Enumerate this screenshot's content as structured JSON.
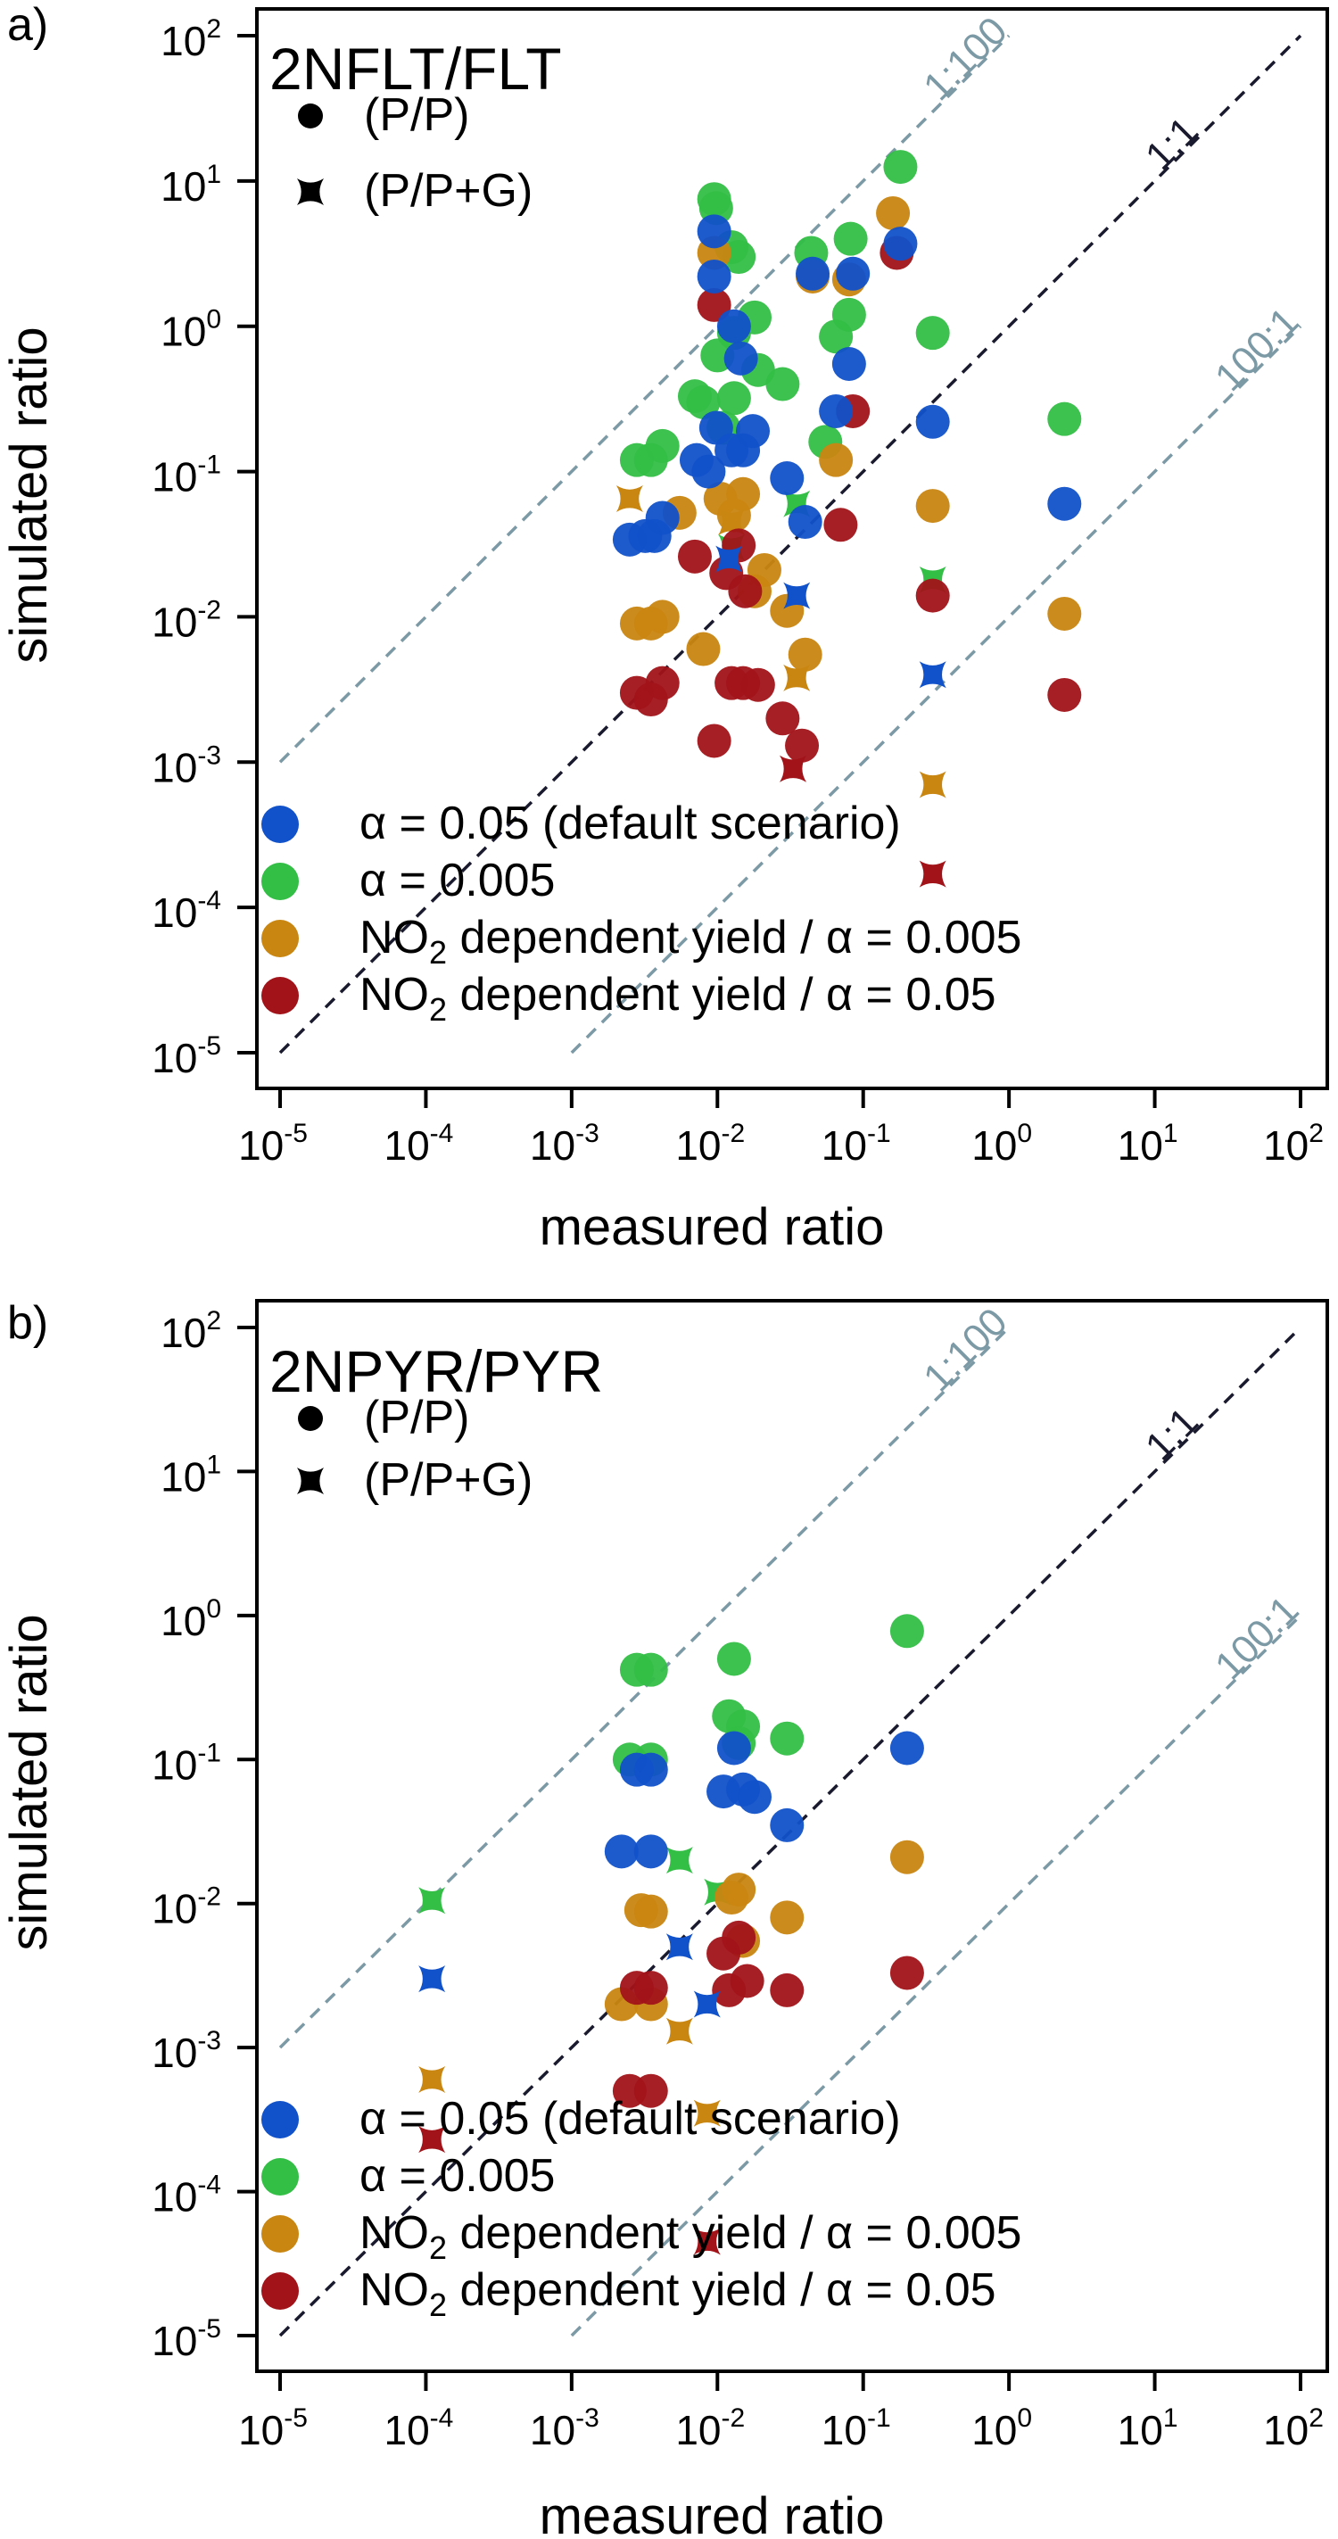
{
  "colors": {
    "blue": "#1151c9",
    "green": "#33be46",
    "orange": "#c98611",
    "red": "#a11319",
    "reference": "#7c99a6",
    "one_to_one": "#1a1a2e"
  },
  "chart_data": [
    {
      "type": "scatter",
      "panel": "a)",
      "title": "2NFLT/FLT",
      "xlabel": "measured ratio",
      "ylabel": "simulated ratio",
      "xscale": "log",
      "yscale": "log",
      "xlim": [
        1e-05,
        100
      ],
      "ylim": [
        1e-05,
        100
      ],
      "x_ticks": [
        {
          "base": "10",
          "exp": "-5"
        },
        {
          "base": "10",
          "exp": "-4"
        },
        {
          "base": "10",
          "exp": "-3"
        },
        {
          "base": "10",
          "exp": "-2"
        },
        {
          "base": "10",
          "exp": "-1"
        },
        {
          "base": "10",
          "exp": "0"
        },
        {
          "base": "10",
          "exp": "1"
        },
        {
          "base": "10",
          "exp": "2"
        }
      ],
      "y_ticks": [
        {
          "base": "10",
          "exp": "-5"
        },
        {
          "base": "10",
          "exp": "-4"
        },
        {
          "base": "10",
          "exp": "-3"
        },
        {
          "base": "10",
          "exp": "-2"
        },
        {
          "base": "10",
          "exp": "-1"
        },
        {
          "base": "10",
          "exp": "0"
        },
        {
          "base": "10",
          "exp": "1"
        },
        {
          "base": "10",
          "exp": "2"
        }
      ],
      "marker_legend": [
        {
          "marker": "circle",
          "label": "(P/P)"
        },
        {
          "marker": "star",
          "label": "(P/P+G)"
        }
      ],
      "reference_lines": [
        {
          "label": "1:100",
          "factor": 100
        },
        {
          "label": "1:1",
          "factor": 1
        },
        {
          "label": "100:1",
          "factor": 0.01
        }
      ],
      "legend": [
        {
          "color_key": "blue",
          "text": "α = 0.05 (default scenario)",
          "sub": ""
        },
        {
          "color_key": "green",
          "text": "α = 0.005",
          "sub": ""
        },
        {
          "color_key": "orange",
          "text": "NO",
          "sub": "2",
          "rest": " dependent   yield / α = 0.005"
        },
        {
          "color_key": "red",
          "text": "NO",
          "sub": "2",
          "rest": " dependent   yield / α = 0.05"
        }
      ],
      "series": [
        {
          "name": "α = 0.005",
          "color_key": "green",
          "circles": [
            [
              0.0028,
              0.12
            ],
            [
              0.0035,
              0.12
            ],
            [
              0.0042,
              0.15
            ],
            [
              0.007,
              0.33
            ],
            [
              0.008,
              0.3
            ],
            [
              0.0095,
              7.5
            ],
            [
              0.0098,
              6.5
            ],
            [
              0.01,
              0.63
            ],
            [
              0.011,
              0.2
            ],
            [
              0.0125,
              3.5
            ],
            [
              0.013,
              0.32
            ],
            [
              0.013,
              0.9
            ],
            [
              0.014,
              3.0
            ],
            [
              0.018,
              1.15
            ],
            [
              0.019,
              0.5
            ],
            [
              0.028,
              0.4
            ],
            [
              0.044,
              3.2
            ],
            [
              0.055,
              0.16
            ],
            [
              0.065,
              0.85
            ],
            [
              0.08,
              1.2
            ],
            [
              0.082,
              4.0
            ],
            [
              0.3,
              0.9
            ],
            [
              0.18,
              12.5
            ],
            [
              2.4,
              0.23
            ]
          ],
          "stars": [
            [
              0.035,
              0.06
            ],
            [
              0.3,
              0.018
            ],
            [
              0.0125,
              0.03
            ]
          ]
        },
        {
          "name": "NO2 dependent yield / α = 0.005",
          "color_key": "orange",
          "circles": [
            [
              0.0028,
              0.009
            ],
            [
              0.0035,
              0.009
            ],
            [
              0.0042,
              0.01
            ],
            [
              0.0055,
              0.052
            ],
            [
              0.008,
              0.006
            ],
            [
              0.0095,
              3.2
            ],
            [
              0.0105,
              0.065
            ],
            [
              0.013,
              0.05
            ],
            [
              0.015,
              0.07
            ],
            [
              0.018,
              0.015
            ],
            [
              0.021,
              0.021
            ],
            [
              0.03,
              0.011
            ],
            [
              0.04,
              0.0055
            ],
            [
              0.045,
              2.2
            ],
            [
              0.065,
              0.12
            ],
            [
              0.08,
              2.1
            ],
            [
              0.16,
              6.0
            ],
            [
              0.3,
              0.058
            ],
            [
              2.4,
              0.0105
            ]
          ],
          "stars": [
            [
              0.0025,
              0.065
            ],
            [
              0.035,
              0.0038
            ],
            [
              0.3,
              0.0007
            ],
            [
              0.0125,
              0.045
            ]
          ]
        },
        {
          "name": "NO2 dependent yield / α = 0.05",
          "color_key": "red",
          "circles": [
            [
              0.0028,
              0.003
            ],
            [
              0.0035,
              0.0027
            ],
            [
              0.0042,
              0.0035
            ],
            [
              0.007,
              0.026
            ],
            [
              0.0095,
              1.4
            ],
            [
              0.0095,
              0.0014
            ],
            [
              0.0115,
              0.02
            ],
            [
              0.0125,
              0.0035
            ],
            [
              0.014,
              0.031
            ],
            [
              0.015,
              0.0035
            ],
            [
              0.0155,
              0.015
            ],
            [
              0.019,
              0.0034
            ],
            [
              0.028,
              0.002
            ],
            [
              0.038,
              0.0013
            ],
            [
              0.07,
              0.043
            ],
            [
              0.085,
              0.26
            ],
            [
              0.17,
              3.2
            ],
            [
              0.3,
              0.014
            ],
            [
              2.4,
              0.0029
            ]
          ],
          "stars": [
            [
              0.033,
              0.0009
            ],
            [
              0.3,
              0.00017
            ]
          ]
        },
        {
          "name": "α = 0.05 (default scenario)",
          "color_key": "blue",
          "circles": [
            [
              0.0025,
              0.034
            ],
            [
              0.0032,
              0.036
            ],
            [
              0.0037,
              0.036
            ],
            [
              0.0042,
              0.048
            ],
            [
              0.0072,
              0.12
            ],
            [
              0.0087,
              0.1
            ],
            [
              0.0095,
              4.5
            ],
            [
              0.0095,
              2.2
            ],
            [
              0.0098,
              0.2
            ],
            [
              0.0125,
              0.14
            ],
            [
              0.013,
              1.0
            ],
            [
              0.0145,
              0.6
            ],
            [
              0.015,
              0.14
            ],
            [
              0.0175,
              0.19
            ],
            [
              0.03,
              0.09
            ],
            [
              0.04,
              0.045
            ],
            [
              0.045,
              2.3
            ],
            [
              0.065,
              0.26
            ],
            [
              0.08,
              0.55
            ],
            [
              0.085,
              2.3
            ],
            [
              0.18,
              3.7
            ],
            [
              0.3,
              0.22
            ],
            [
              2.4,
              0.06
            ]
          ],
          "stars": [
            [
              0.012,
              0.025
            ],
            [
              0.035,
              0.014
            ],
            [
              0.3,
              0.004
            ]
          ]
        }
      ]
    },
    {
      "type": "scatter",
      "panel": "b)",
      "title": "2NPYR/PYR",
      "xlabel": "measured ratio",
      "ylabel": "simulated ratio",
      "xscale": "log",
      "yscale": "log",
      "xlim": [
        1e-05,
        100
      ],
      "ylim": [
        1e-05,
        100
      ],
      "x_ticks": [
        {
          "base": "10",
          "exp": "-5"
        },
        {
          "base": "10",
          "exp": "-4"
        },
        {
          "base": "10",
          "exp": "-3"
        },
        {
          "base": "10",
          "exp": "-2"
        },
        {
          "base": "10",
          "exp": "-1"
        },
        {
          "base": "10",
          "exp": "0"
        },
        {
          "base": "10",
          "exp": "1"
        },
        {
          "base": "10",
          "exp": "2"
        }
      ],
      "y_ticks": [
        {
          "base": "10",
          "exp": "-5"
        },
        {
          "base": "10",
          "exp": "-4"
        },
        {
          "base": "10",
          "exp": "-3"
        },
        {
          "base": "10",
          "exp": "-2"
        },
        {
          "base": "10",
          "exp": "-1"
        },
        {
          "base": "10",
          "exp": "0"
        },
        {
          "base": "10",
          "exp": "1"
        },
        {
          "base": "10",
          "exp": "2"
        }
      ],
      "marker_legend": [
        {
          "marker": "circle",
          "label": "(P/P)"
        },
        {
          "marker": "star",
          "label": "(P/P+G)"
        }
      ],
      "reference_lines": [
        {
          "label": "1:100",
          "factor": 100
        },
        {
          "label": "1:1",
          "factor": 1
        },
        {
          "label": "100:1",
          "factor": 0.01
        }
      ],
      "legend": [
        {
          "color_key": "blue",
          "text": "α = 0.05 (default scenario)",
          "sub": ""
        },
        {
          "color_key": "green",
          "text": "α = 0.005",
          "sub": ""
        },
        {
          "color_key": "orange",
          "text": "NO",
          "sub": "2",
          "rest": " dependent   yield / α = 0.005"
        },
        {
          "color_key": "red",
          "text": "NO",
          "sub": "2",
          "rest": " dependent   yield / α = 0.05"
        }
      ],
      "series": [
        {
          "name": "α = 0.005",
          "color_key": "green",
          "circles": [
            [
              0.0025,
              0.1
            ],
            [
              0.0028,
              0.42
            ],
            [
              0.0035,
              0.42
            ],
            [
              0.0035,
              0.1
            ],
            [
              0.013,
              0.5
            ],
            [
              0.012,
              0.2
            ],
            [
              0.015,
              0.17
            ],
            [
              0.014,
              0.13
            ],
            [
              0.03,
              0.14
            ],
            [
              0.2,
              0.78
            ]
          ],
          "stars": [
            [
              0.00011,
              0.0105
            ],
            [
              0.0055,
              0.02
            ],
            [
              0.01,
              0.012
            ]
          ]
        },
        {
          "name": "NO2 dependent yield / α = 0.005",
          "color_key": "orange",
          "circles": [
            [
              0.0022,
              0.002
            ],
            [
              0.003,
              0.009
            ],
            [
              0.0035,
              0.0088
            ],
            [
              0.0035,
              0.002
            ],
            [
              0.0125,
              0.011
            ],
            [
              0.014,
              0.0125
            ],
            [
              0.015,
              0.0055
            ],
            [
              0.03,
              0.008
            ],
            [
              0.2,
              0.021
            ]
          ],
          "stars": [
            [
              0.00011,
              0.0006
            ],
            [
              0.0055,
              0.0013
            ],
            [
              0.0085,
              0.00035
            ]
          ]
        },
        {
          "name": "NO2 dependent yield / α = 0.05",
          "color_key": "red",
          "circles": [
            [
              0.0025,
              0.0005
            ],
            [
              0.0028,
              0.0026
            ],
            [
              0.0035,
              0.0026
            ],
            [
              0.0035,
              0.0005
            ],
            [
              0.011,
              0.0045
            ],
            [
              0.012,
              0.0025
            ],
            [
              0.014,
              0.0058
            ],
            [
              0.016,
              0.0029
            ],
            [
              0.03,
              0.0025
            ],
            [
              0.2,
              0.0033
            ]
          ],
          "stars": [
            [
              0.00011,
              0.00023
            ],
            [
              0.0085,
              4.5e-05
            ]
          ]
        },
        {
          "name": "α = 0.05 (default scenario)",
          "color_key": "blue",
          "circles": [
            [
              0.0022,
              0.023
            ],
            [
              0.0028,
              0.085
            ],
            [
              0.0035,
              0.085
            ],
            [
              0.0035,
              0.023
            ],
            [
              0.011,
              0.06
            ],
            [
              0.013,
              0.12
            ],
            [
              0.015,
              0.062
            ],
            [
              0.018,
              0.055
            ],
            [
              0.03,
              0.035
            ],
            [
              0.2,
              0.12
            ]
          ],
          "stars": [
            [
              0.00011,
              0.003
            ],
            [
              0.0055,
              0.005
            ],
            [
              0.0085,
              0.002
            ]
          ]
        }
      ]
    }
  ]
}
